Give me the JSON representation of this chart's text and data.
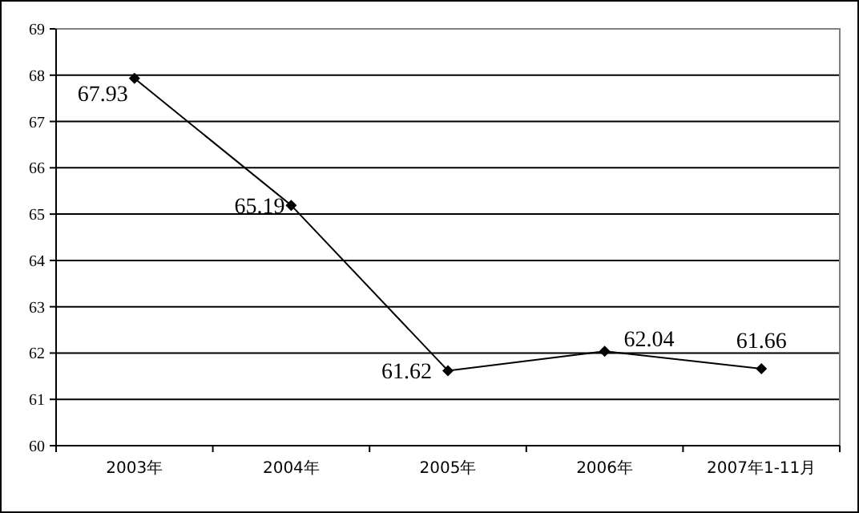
{
  "chart_data": {
    "type": "line",
    "categories": [
      "2003年",
      "2004年",
      "2005年",
      "2006年",
      "2007年1-11月"
    ],
    "series": [
      {
        "color": "#000000",
        "values": [
          67.93,
          65.19,
          61.62,
          62.04,
          61.66
        ]
      }
    ],
    "ylim": [
      60,
      69
    ],
    "yticks": [
      60,
      61,
      62,
      63,
      64,
      65,
      66,
      67,
      68,
      69
    ],
    "grid": "y",
    "marker": "diamond",
    "line_style": "solid",
    "data_labels": true
  }
}
